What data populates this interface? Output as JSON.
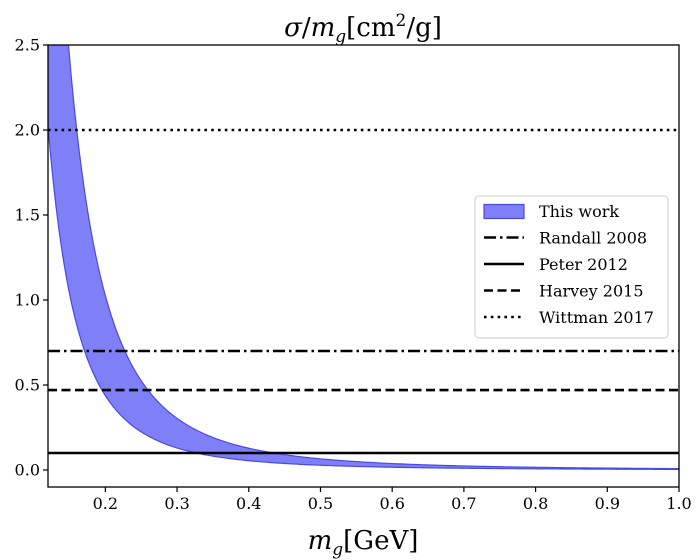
{
  "chart_data": {
    "type": "area",
    "title": "σ/m_g[cm²/g]",
    "title_parts": {
      "sigma": "σ",
      "slash": "/",
      "m": "m",
      "g_sub": "g",
      "open": "[cm",
      "sq": "2",
      "close": "/g]"
    },
    "xlabel": "m_g[GeV]",
    "xlabel_parts": {
      "m": "m",
      "g_sub": "g",
      "unit": "[GeV]"
    },
    "ylabel": "",
    "xlim": [
      0.12,
      1.0
    ],
    "ylim": [
      -0.1,
      2.5
    ],
    "xticks": [
      0.2,
      0.3,
      0.4,
      0.5,
      0.6,
      0.7,
      0.8,
      0.9,
      1.0
    ],
    "xtick_labels": [
      "0.2",
      "0.3",
      "0.4",
      "0.5",
      "0.6",
      "0.7",
      "0.8",
      "0.9",
      "1.0"
    ],
    "yticks": [
      0.0,
      0.5,
      1.0,
      1.5,
      2.0,
      2.5
    ],
    "ytick_labels": [
      "0.0",
      "0.5",
      "1.0",
      "1.5",
      "2.0",
      "2.5"
    ],
    "grid": false,
    "legend_position": "center-right",
    "band": {
      "name": "This work",
      "color": "#7f7ff7",
      "edge_color": "#4a4ae0",
      "lower_coeff": 0.0035,
      "upper_coeff": 0.0082,
      "exponent": 3,
      "note_x": [
        0.13,
        0.2,
        0.3,
        0.4,
        0.6,
        1.0
      ],
      "lower": [
        1.59,
        0.44,
        0.13,
        0.055,
        0.016,
        0.0035
      ],
      "upper": [
        3.73,
        1.03,
        0.3,
        0.128,
        0.038,
        0.0082
      ]
    },
    "hlines": [
      {
        "name": "Randall 2008",
        "y": 0.7,
        "style": "dashdot"
      },
      {
        "name": "Peter 2012",
        "y": 0.1,
        "style": "solid"
      },
      {
        "name": "Harvey 2015",
        "y": 0.47,
        "style": "dashed"
      },
      {
        "name": "Wittman 2017",
        "y": 2.0,
        "style": "dotted"
      }
    ]
  }
}
